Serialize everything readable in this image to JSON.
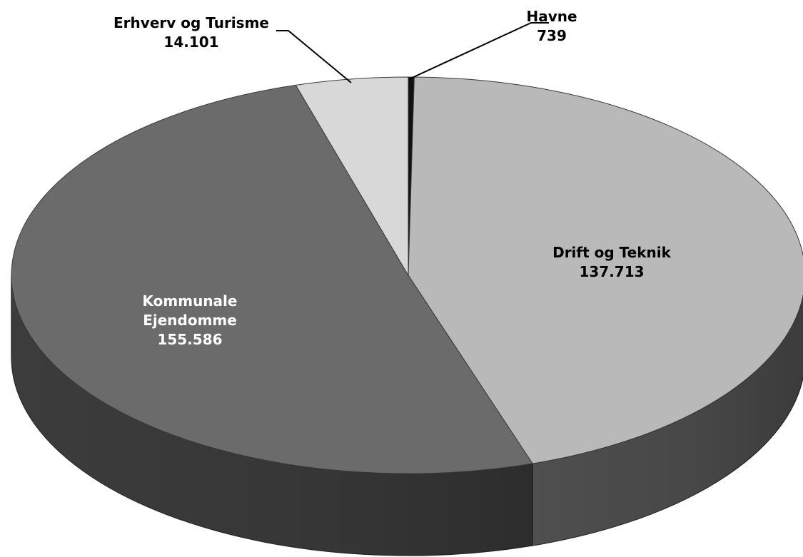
{
  "chart_data": {
    "type": "pie",
    "title": "",
    "slices": [
      {
        "name": "Havne",
        "value": 739,
        "value_label": "739",
        "top_color": "#111111",
        "side_color": "#0a0a0a",
        "label_color": "#000000"
      },
      {
        "name": "Drift og Teknik",
        "value": 137713,
        "value_label": "137.713",
        "top_color": "#b9b9b9",
        "side_color": "#4f4f4f",
        "label_color": "#000000"
      },
      {
        "name": "Kommunale Ejendomme",
        "value": 155586,
        "value_label": "155.586",
        "top_color": "#6b6b6b",
        "side_color": "#3c3c3c",
        "label_color": "#ffffff"
      },
      {
        "name": "Erhverv og Turisme",
        "value": 14101,
        "value_label": "14.101",
        "top_color": "#d8d8d8",
        "side_color": "#8a8a8a",
        "label_color": "#000000"
      }
    ],
    "legend": "none",
    "style": "3d"
  }
}
